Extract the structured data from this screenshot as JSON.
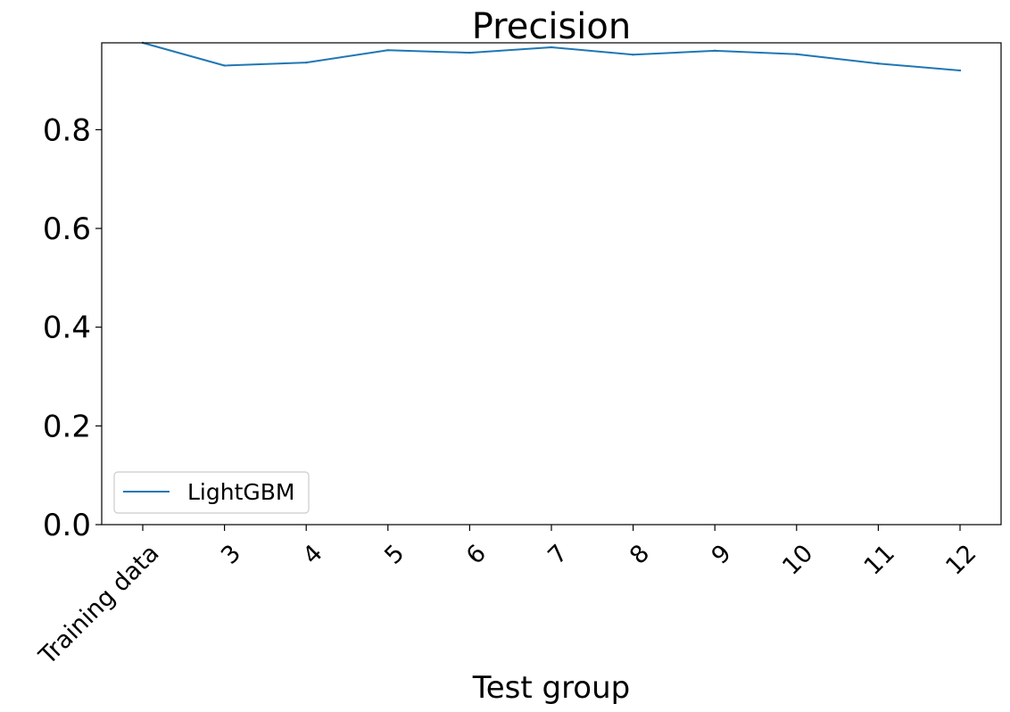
{
  "chart_data": {
    "type": "line",
    "title": "Precision",
    "xlabel": "Test group",
    "ylabel": "",
    "categories": [
      "Training data",
      "3",
      "4",
      "5",
      "6",
      "7",
      "8",
      "9",
      "10",
      "11",
      "12"
    ],
    "series": [
      {
        "name": "LightGBM",
        "color": "#1f77b4",
        "values": [
          0.976,
          0.93,
          0.936,
          0.961,
          0.956,
          0.967,
          0.952,
          0.96,
          0.953,
          0.934,
          0.92
        ]
      }
    ],
    "ylim": [
      0,
      0.976
    ],
    "yticks": [
      0.0,
      0.2,
      0.4,
      0.6,
      0.8
    ],
    "ytick_labels": [
      "0.0",
      "0.2",
      "0.4",
      "0.6",
      "0.8"
    ],
    "grid": false,
    "legend_position": "lower-left"
  }
}
